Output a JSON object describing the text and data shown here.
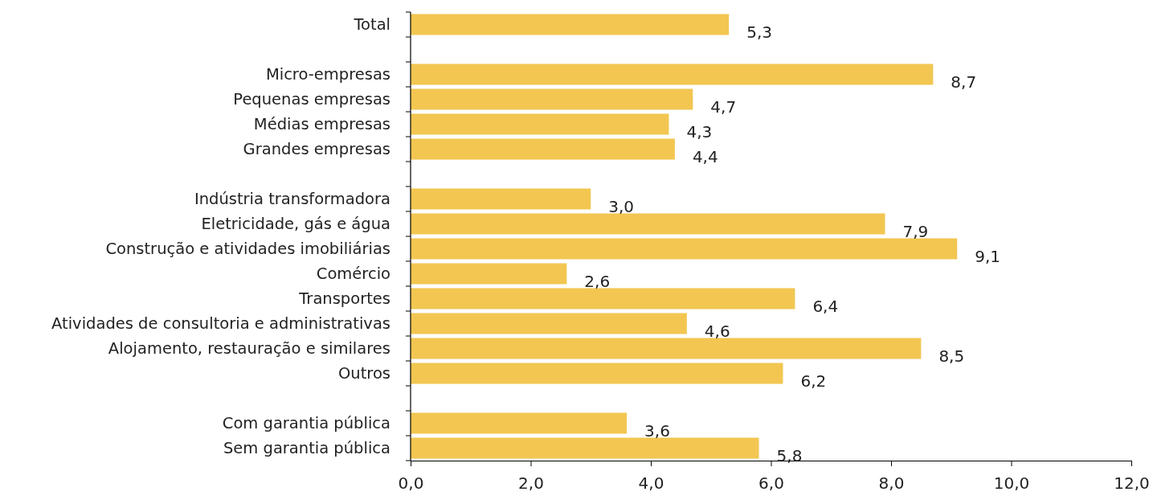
{
  "chart_data": {
    "type": "bar",
    "orientation": "horizontal",
    "categories": [
      "Total",
      null,
      "Micro-empresas",
      "Pequenas empresas",
      "Médias empresas",
      "Grandes empresas",
      null,
      "Indústria transformadora",
      "Eletricidade, gás e água",
      "Construção e atividades imobiliárias",
      "Comércio",
      "Transportes",
      "Atividades de consultoria e administrativas",
      "Alojamento, restauração e similares",
      "Outros",
      null,
      "Com garantia pública",
      "Sem garantia pública"
    ],
    "values": [
      5.3,
      null,
      8.7,
      4.7,
      4.3,
      4.4,
      null,
      3.0,
      7.9,
      9.1,
      2.6,
      6.4,
      4.6,
      8.5,
      6.2,
      null,
      3.6,
      5.8
    ],
    "value_labels": [
      "5,3",
      null,
      "8,7",
      "4,7",
      "4,3",
      "4,4",
      null,
      "3,0",
      "7,9",
      "9,1",
      "2,6",
      "6,4",
      "4,6",
      "8,5",
      "6,2",
      null,
      "3,6",
      "5,8"
    ],
    "color": "#f2c651",
    "xlim": [
      0,
      12
    ],
    "xticks": [
      {
        "value": 0,
        "label": "0,0"
      },
      {
        "value": 2,
        "label": "2,0"
      },
      {
        "value": 4,
        "label": "4,0"
      },
      {
        "value": 6,
        "label": "6,0"
      },
      {
        "value": 8,
        "label": "8,0"
      },
      {
        "value": 10,
        "label": "10,0"
      },
      {
        "value": 12,
        "label": "12,0"
      }
    ]
  }
}
